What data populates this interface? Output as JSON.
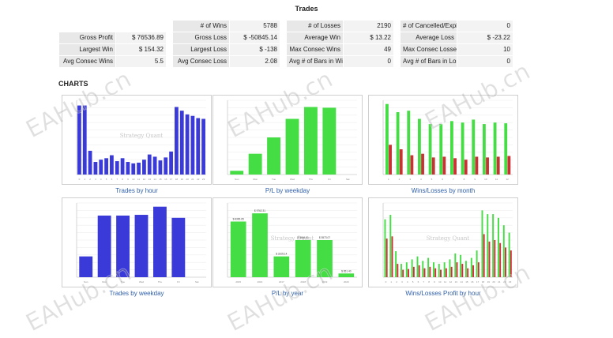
{
  "header": {
    "title": "Trades"
  },
  "stats": {
    "top": [
      {
        "label": "# of Wins",
        "value": "5788"
      },
      {
        "label": "# of Losses",
        "value": "2190"
      },
      {
        "label": "# of Cancelled/Expired",
        "value": "0"
      }
    ],
    "rows": [
      [
        {
          "label": "Gross Profit",
          "value": "$ 76536.89"
        },
        {
          "label": "Gross Loss",
          "value": "$ -50845.14"
        },
        {
          "label": "Average Win",
          "value": "$ 13.22"
        },
        {
          "label": "Average Loss",
          "value": "$ -23.22"
        }
      ],
      [
        {
          "label": "Largest Win",
          "value": "$ 154.32"
        },
        {
          "label": "Largest Loss",
          "value": "$ -138"
        },
        {
          "label": "Max Consec Wins",
          "value": "49"
        },
        {
          "label": "Max Consec Losses",
          "value": "10"
        }
      ],
      [
        {
          "label": "Avg Consec Wins",
          "value": "5.5"
        },
        {
          "label": "Avg Consec Loss",
          "value": "2.08"
        },
        {
          "label": "Avg # of Bars in Wins",
          "value": "0"
        },
        {
          "label": "Avg # of Bars in Losses",
          "value": "0"
        }
      ]
    ]
  },
  "charts_heading": "CHARTS",
  "watermark": "EAHub.cn",
  "colors": {
    "blue": "#3a3ad8",
    "green": "#44dd44",
    "red": "#c83232",
    "caption": "#2f5faa"
  },
  "chart_data": [
    {
      "type": "bar",
      "title": "Trades by hour",
      "inner_watermark": "Strategy Quant",
      "xlabel": "",
      "ylabel": "",
      "ylim": [
        0,
        100
      ],
      "color": "blue",
      "categories": [
        "0",
        "1",
        "2",
        "3",
        "4",
        "5",
        "6",
        "7",
        "8",
        "9",
        "10",
        "11",
        "12",
        "13",
        "14",
        "15",
        "16",
        "17",
        "18",
        "19",
        "20",
        "21",
        "22",
        "23"
      ],
      "values": [
        93,
        93,
        32,
        17,
        20,
        22,
        26,
        18,
        22,
        17,
        15,
        16,
        20,
        27,
        24,
        19,
        23,
        31,
        91,
        86,
        81,
        79,
        76,
        75
      ]
    },
    {
      "type": "bar",
      "title": "P/L by weekday",
      "xlabel": "",
      "ylabel": "",
      "ylim": [
        0,
        100
      ],
      "color": "green",
      "categories": [
        "Sun",
        "Mon",
        "Tue",
        "Wed",
        "Thu",
        "Fri",
        "Sat"
      ],
      "values": [
        5,
        28,
        50,
        75,
        91,
        90,
        0
      ]
    },
    {
      "type": "bar",
      "title": "Wins/Losses by month",
      "xlabel": "",
      "ylabel": "",
      "ylim": [
        0,
        100
      ],
      "categories": [
        "1",
        "2",
        "3",
        "4",
        "5",
        "6",
        "7",
        "8",
        "9",
        "10",
        "11",
        "12"
      ],
      "series": [
        {
          "color": "green",
          "values": [
            95,
            84,
            86,
            75,
            68,
            68,
            72,
            70,
            74,
            68,
            70,
            69
          ]
        },
        {
          "color": "red",
          "values": [
            40,
            34,
            26,
            28,
            23,
            24,
            22,
            20,
            24,
            23,
            24,
            25
          ]
        }
      ]
    },
    {
      "type": "bar",
      "title": "Trades by weekday",
      "xlabel": "",
      "ylabel": "",
      "ylim": [
        0,
        100
      ],
      "color": "blue",
      "categories": [
        "Sun",
        "Mon",
        "Tue",
        "Wed",
        "Thu",
        "Fri",
        "Sat"
      ],
      "values": [
        28,
        83,
        83,
        84,
        95,
        80,
        0
      ]
    },
    {
      "type": "bar",
      "title": "P/L by year",
      "inner_watermark": "Strategy Quant",
      "xlabel": "",
      "ylabel": "",
      "ylim": [
        0,
        100
      ],
      "color": "green",
      "categories": [
        "2015",
        "2016",
        "2017",
        "2018",
        "2019",
        "2020"
      ],
      "values": [
        75,
        86,
        28,
        50,
        50,
        5
      ],
      "value_labels": [
        "$ 8365.65",
        "$ 9762.31",
        "$ 3105.14",
        "$ 5664.51",
        "$ 5573.07",
        "$ 651.40"
      ]
    },
    {
      "type": "bar",
      "title": "Wins/Losses Profit by hour",
      "inner_watermark": "Strategy Quant",
      "xlabel": "",
      "ylabel": "",
      "ylim": [
        0,
        100
      ],
      "categories": [
        "0",
        "1",
        "2",
        "3",
        "4",
        "5",
        "6",
        "7",
        "8",
        "9",
        "10",
        "11",
        "12",
        "13",
        "14",
        "15",
        "16",
        "17",
        "18",
        "19",
        "20",
        "21",
        "22",
        "23"
      ],
      "series": [
        {
          "color": "green",
          "values": [
            78,
            84,
            35,
            18,
            20,
            24,
            28,
            22,
            26,
            20,
            18,
            20,
            24,
            32,
            30,
            22,
            26,
            36,
            90,
            85,
            85,
            80,
            70,
            60
          ]
        },
        {
          "color": "red",
          "values": [
            52,
            55,
            18,
            10,
            11,
            14,
            16,
            12,
            14,
            12,
            10,
            12,
            14,
            20,
            18,
            12,
            16,
            20,
            58,
            48,
            50,
            46,
            40,
            36
          ]
        }
      ]
    }
  ]
}
